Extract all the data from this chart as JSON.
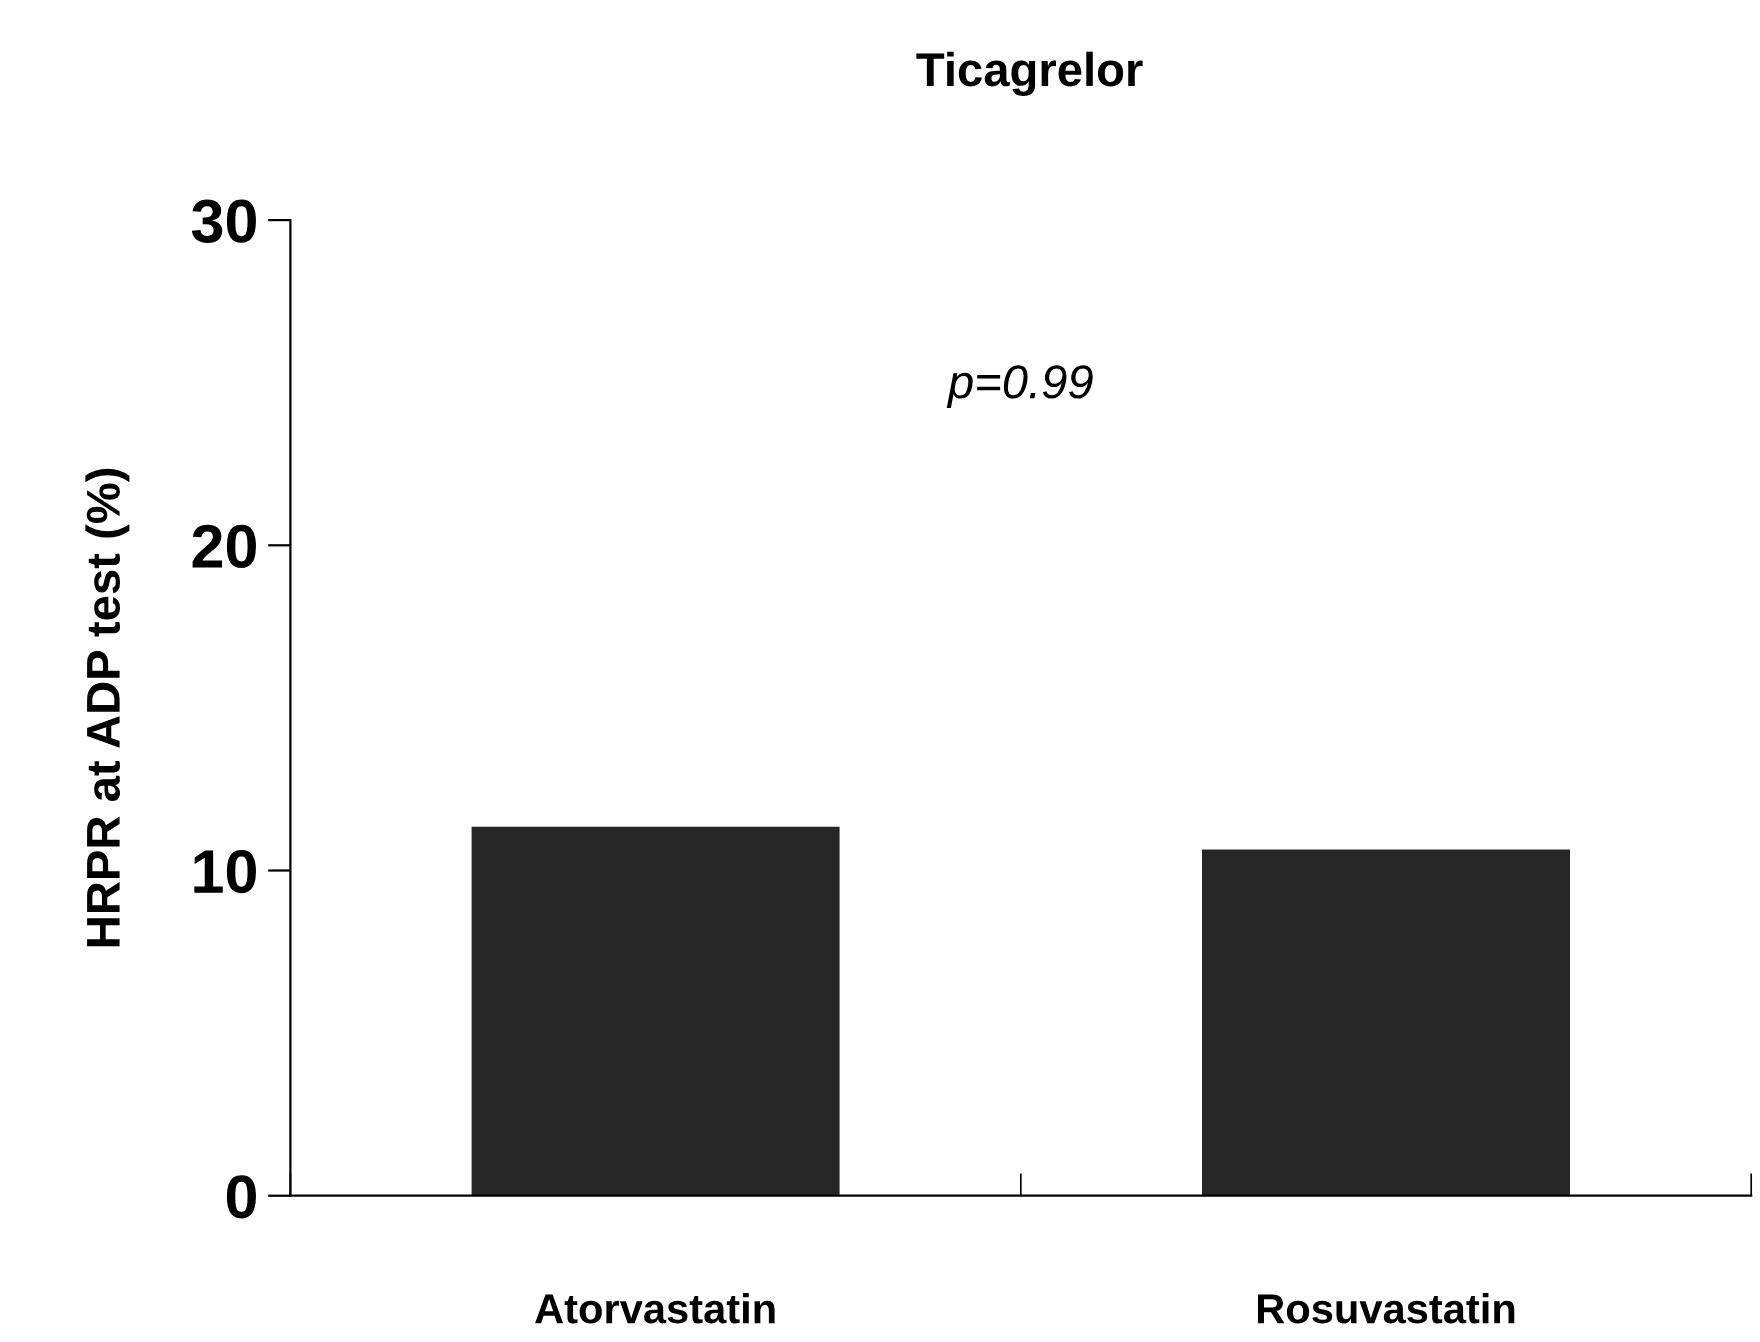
{
  "chart_data": {
    "type": "bar",
    "title": "Ticagrelor",
    "ylabel": "HRPR at ADP test (%)",
    "categories": [
      "Atorvastatin",
      "Rosuvastatin"
    ],
    "values": [
      11.3,
      10.6
    ],
    "color": "#262626",
    "ylim": [
      0,
      30
    ],
    "yticks": [
      0,
      10,
      20,
      30
    ],
    "grid": false,
    "legend": false,
    "annotations": [
      "p=0.99"
    ]
  }
}
